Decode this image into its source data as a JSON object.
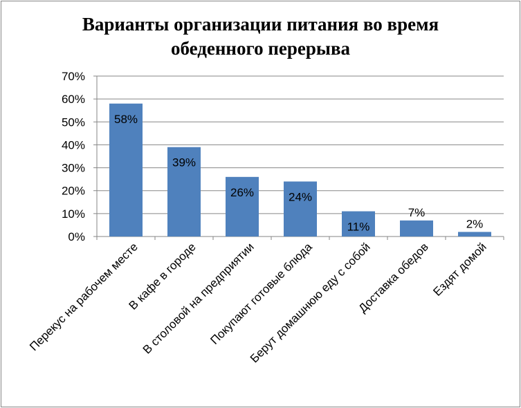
{
  "chart_data": {
    "type": "bar",
    "title_lines": [
      "Варианты организации питания во время",
      "обеденного перерыва"
    ],
    "categories": [
      "Перекус на рабочем месте",
      "В кафе в городе",
      "В столовой на предприятии",
      "Покупают готовые блюда",
      "Берут домашнюю еду с собой",
      "Доставка обедов",
      "Ездят домой"
    ],
    "values": [
      58,
      39,
      26,
      24,
      11,
      7,
      2
    ],
    "data_labels": [
      "58%",
      "39%",
      "26%",
      "24%",
      "11%",
      "7%",
      "2%"
    ],
    "y_ticks": [
      "0%",
      "10%",
      "20%",
      "30%",
      "40%",
      "50%",
      "60%",
      "70%"
    ],
    "ylim": [
      0,
      70
    ],
    "grid": true,
    "legend": "none",
    "bar_color": "#4F81BD"
  }
}
